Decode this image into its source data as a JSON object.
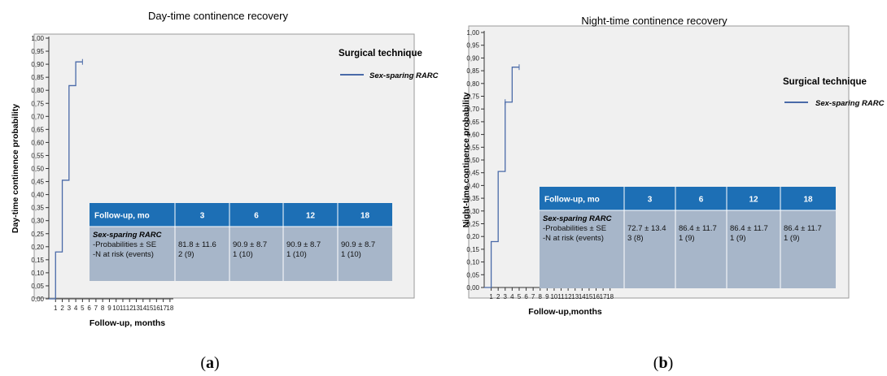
{
  "chart_data": [
    {
      "type": "line",
      "title": "Day-time continence recovery",
      "xlabel": "Follow-up, months",
      "ylabel": "Day-time continence probability",
      "x_ticks": [
        "1",
        "2",
        "3",
        "4",
        "5",
        "6",
        "7",
        "8",
        "9",
        "10",
        "11",
        "12",
        "13",
        "14",
        "15",
        "16",
        "17",
        "18"
      ],
      "y_ticks": [
        "0,00",
        "0,05",
        "0,10",
        "0,15",
        "0,20",
        "0,25",
        "0,30",
        "0,35",
        "0,40",
        "0,45",
        "0,50",
        "0,55",
        "0,60",
        "0,65",
        "0,70",
        "0,75",
        "0,80",
        "0,85",
        "0,90",
        "0,95",
        "1,00"
      ],
      "xlim": [
        0,
        18.5
      ],
      "ylim": [
        0,
        1
      ],
      "legend_title": "Surgical technique",
      "series": [
        {
          "name": "Sex-sparing RARC",
          "color": "#4a6aa8",
          "step": true,
          "points": [
            [
              0,
              0
            ],
            [
              1,
              0.18
            ],
            [
              2,
              0.455
            ],
            [
              3,
              0.818
            ],
            [
              4,
              0.909
            ],
            [
              5,
              0.909
            ]
          ],
          "censor_marks": [
            [
              5,
              0.909
            ]
          ]
        }
      ],
      "table": {
        "header": [
          "Follow-up, mo",
          "3",
          "6",
          "12",
          "18"
        ],
        "group": "Sex-sparing RARC",
        "row_labels": [
          "-Probabilities ± SE",
          "-N at risk (events)"
        ],
        "cells": [
          [
            "81.8 ± 11.6",
            "2 (9)"
          ],
          [
            "90.9 ±  8.7",
            "1 (10)"
          ],
          [
            "90.9 ±  8.7",
            "1 (10)"
          ],
          [
            "90.9 ±  8.7",
            "1 (10)"
          ]
        ]
      },
      "caption_label": "a"
    },
    {
      "type": "line",
      "title": "Night-time continence recovery",
      "xlabel": "Follow-up,months",
      "ylabel": "Night-time continence probability",
      "x_ticks": [
        "1",
        "2",
        "3",
        "4",
        "5",
        "6",
        "7",
        "8",
        "9",
        "10",
        "11",
        "12",
        "13",
        "14",
        "15",
        "16",
        "17",
        "18"
      ],
      "y_ticks": [
        "0,00",
        "0,05",
        "0,10",
        "0,15",
        "0,20",
        "0,25",
        "0,30",
        "0,35",
        "0,40",
        "0,45",
        "0,50",
        "0,55",
        "0,60",
        "0,65",
        "0,70",
        "0,75",
        "0,80",
        "0,85",
        "0,90",
        "0,95",
        "1,00"
      ],
      "xlim": [
        0,
        18.5
      ],
      "ylim": [
        0,
        1
      ],
      "legend_title": "Surgical technique",
      "series": [
        {
          "name": "Sex-sparing RARC",
          "color": "#4a6aa8",
          "step": true,
          "points": [
            [
              0,
              0
            ],
            [
              1,
              0.18
            ],
            [
              2,
              0.455
            ],
            [
              3,
              0.727
            ],
            [
              4,
              0.864
            ],
            [
              5,
              0.864
            ]
          ],
          "censor_marks": [
            [
              3,
              0.727
            ],
            [
              5,
              0.864
            ]
          ]
        }
      ],
      "table": {
        "header": [
          "Follow-up, mo",
          "3",
          "6",
          "12",
          "18"
        ],
        "group": "Sex-sparing RARC",
        "row_labels": [
          "-Probabilities ± SE",
          "-N at risk (events)"
        ],
        "cells": [
          [
            "72.7 ± 13.4",
            "3 (8)"
          ],
          [
            "86.4 ± 11.7",
            "1 (9)"
          ],
          [
            "86.4 ± 11.7",
            "1 (9)"
          ],
          [
            "86.4 ± 11.7",
            "1 (9)"
          ]
        ]
      },
      "caption_label": "b"
    }
  ],
  "colors": {
    "plot_background": "#f0f0f0",
    "table_header": "#1d6fb5",
    "table_body": "#a7b6c9",
    "series": "#4a6aa8"
  }
}
